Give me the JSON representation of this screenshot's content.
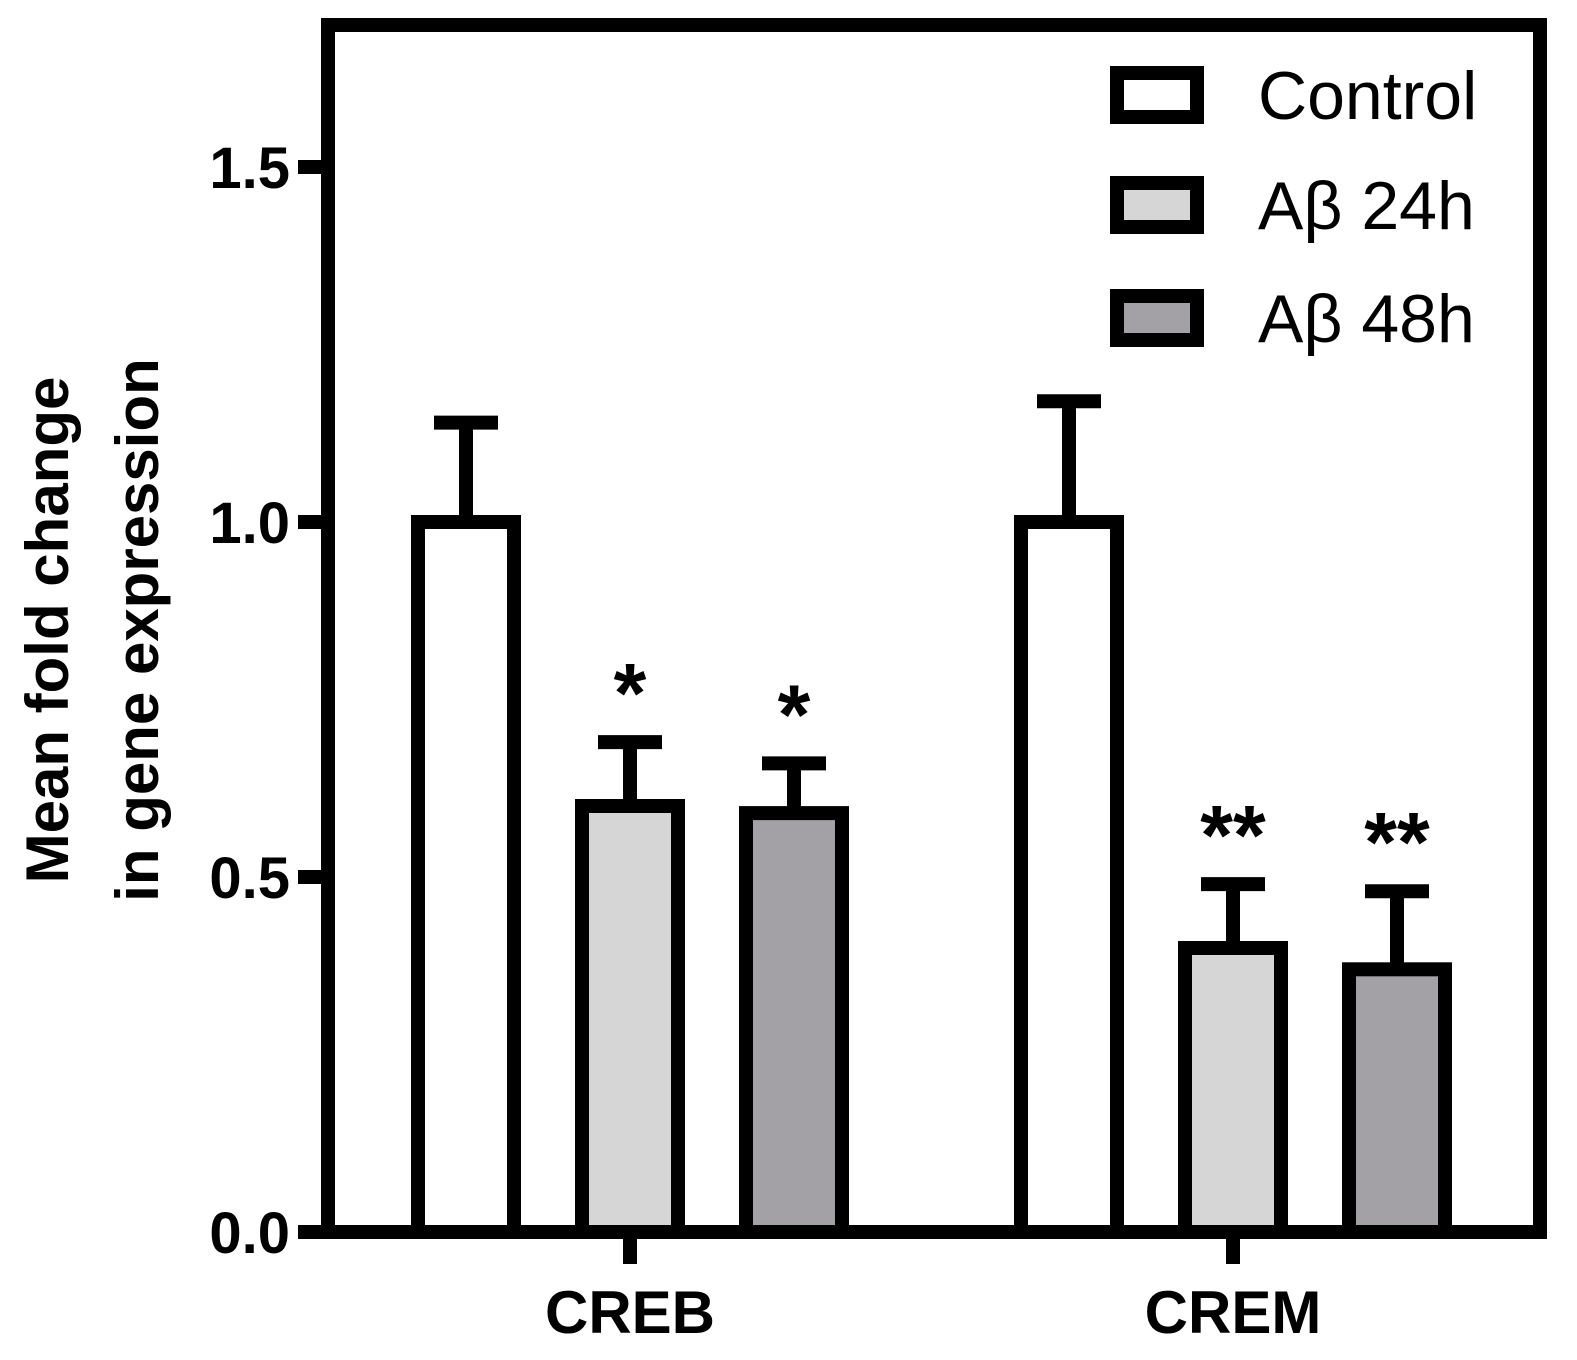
{
  "chart_data": {
    "type": "bar",
    "title": "",
    "xlabel": "",
    "ylabel_lines": [
      "Mean fold change",
      "in gene expression"
    ],
    "ylim": [
      0,
      1.7
    ],
    "yticks": [
      0.0,
      0.5,
      1.0,
      1.5
    ],
    "ytick_labels": [
      "0.0",
      "0.5",
      "1.0",
      "1.5"
    ],
    "categories": [
      "CREB",
      "CREM"
    ],
    "series": [
      {
        "name": "Control",
        "color": "#ffffff",
        "values": [
          1.0,
          1.0
        ],
        "errors": [
          0.14,
          0.17
        ],
        "significance": [
          "",
          ""
        ]
      },
      {
        "name": "Aβ 24h",
        "color": "#d6d6d6",
        "values": [
          0.6,
          0.4
        ],
        "errors": [
          0.09,
          0.09
        ],
        "significance": [
          "*",
          "**"
        ]
      },
      {
        "name": "Aβ 48h",
        "color": "#a3a1a6",
        "values": [
          0.59,
          0.37
        ],
        "errors": [
          0.07,
          0.11
        ],
        "significance": [
          "*",
          "**"
        ]
      }
    ],
    "legend_position": "top-right"
  }
}
